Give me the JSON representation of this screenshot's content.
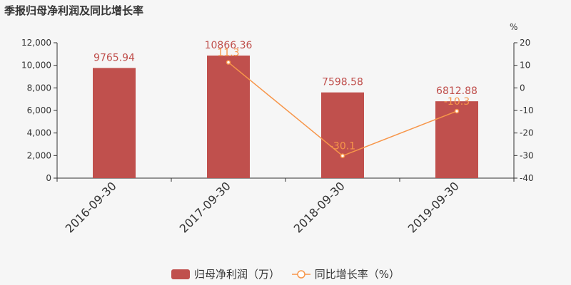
{
  "title": "季报归母净利润及同比增长率",
  "colors": {
    "bar": "#c0504d",
    "line": "#f7964a",
    "axis": "#333333",
    "grid": "#e6e6e6"
  },
  "chart_data": {
    "type": "bar",
    "categories": [
      "2016-09-30",
      "2017-09-30",
      "2018-09-30",
      "2019-09-30"
    ],
    "series": [
      {
        "name": "归母净利润（万）",
        "type": "bar",
        "axis": "left",
        "values": [
          9765.94,
          10866.36,
          7598.58,
          6812.88
        ]
      },
      {
        "name": "同比增长率（%）",
        "type": "line",
        "axis": "right",
        "values": [
          null,
          11.3,
          -30.1,
          -10.3
        ]
      }
    ],
    "value_labels": {
      "bar": [
        "9765.94",
        "10866.36",
        "7598.58",
        "6812.88"
      ],
      "line": [
        "",
        "11.3",
        "-30.1",
        "-10.3"
      ]
    },
    "y_left": {
      "min": 0,
      "max": 12000,
      "ticks": [
        0,
        2000,
        4000,
        6000,
        8000,
        10000,
        12000
      ],
      "tick_labels": [
        "0",
        "2,000",
        "4,000",
        "6,000",
        "8,000",
        "10,000",
        "12,000"
      ]
    },
    "y_right": {
      "label": "%",
      "min": -40,
      "max": 20,
      "ticks": [
        -40,
        -30,
        -20,
        -10,
        0,
        10,
        20
      ],
      "tick_labels": [
        "-40",
        "-30",
        "-20",
        "-10",
        "0",
        "10",
        "20"
      ]
    },
    "grid": false,
    "legend": "bottom-center"
  }
}
